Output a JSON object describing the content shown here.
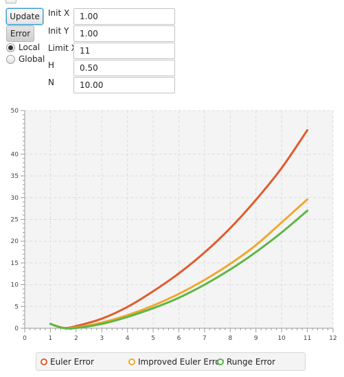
{
  "controls": {
    "update_label": "Update",
    "error_label": "Error",
    "radio_local": "Local",
    "radio_global": "Global",
    "selected_mode": "Local",
    "fields": [
      {
        "label": "Init X",
        "value": "1.00"
      },
      {
        "label": "Init Y",
        "value": "1.00"
      },
      {
        "label": "Limit X",
        "value": "11"
      },
      {
        "label": "H",
        "value": "0.50"
      },
      {
        "label": "N",
        "value": "10.00"
      }
    ]
  },
  "chart_data": {
    "type": "line",
    "xlim": [
      0,
      12
    ],
    "ylim": [
      0,
      50
    ],
    "x_ticks": [
      0,
      1,
      2,
      3,
      4,
      5,
      6,
      7,
      8,
      9,
      10,
      11,
      12
    ],
    "y_ticks": [
      0,
      5,
      10,
      15,
      20,
      25,
      30,
      35,
      40,
      50
    ],
    "grid": true,
    "legend_position": "bottom",
    "series": [
      {
        "name": "Euler Error",
        "color": "#e15b2b",
        "x": [
          1,
          1.5,
          2,
          3,
          4,
          5,
          6,
          7,
          8,
          9,
          10,
          11
        ],
        "y": [
          1.0,
          0.1,
          0.5,
          2.2,
          4.9,
          8.5,
          12.6,
          17.4,
          23.0,
          29.5,
          36.8,
          45.5
        ]
      },
      {
        "name": "Improved Euler Error",
        "color": "#f0a72a",
        "x": [
          1,
          1.5,
          2,
          3,
          4,
          5,
          6,
          7,
          8,
          9,
          10,
          11
        ],
        "y": [
          1.0,
          0.1,
          0.2,
          1.3,
          3.0,
          5.2,
          7.9,
          11.1,
          14.8,
          19.1,
          24.3,
          29.6
        ]
      },
      {
        "name": "Runge Error",
        "color": "#5cb646",
        "x": [
          1,
          1.5,
          2,
          3,
          4,
          5,
          6,
          7,
          8,
          9,
          10,
          11
        ],
        "y": [
          1.0,
          0.05,
          0.05,
          1.0,
          2.6,
          4.6,
          7.0,
          10.0,
          13.5,
          17.5,
          22.0,
          27.0
        ]
      }
    ]
  }
}
